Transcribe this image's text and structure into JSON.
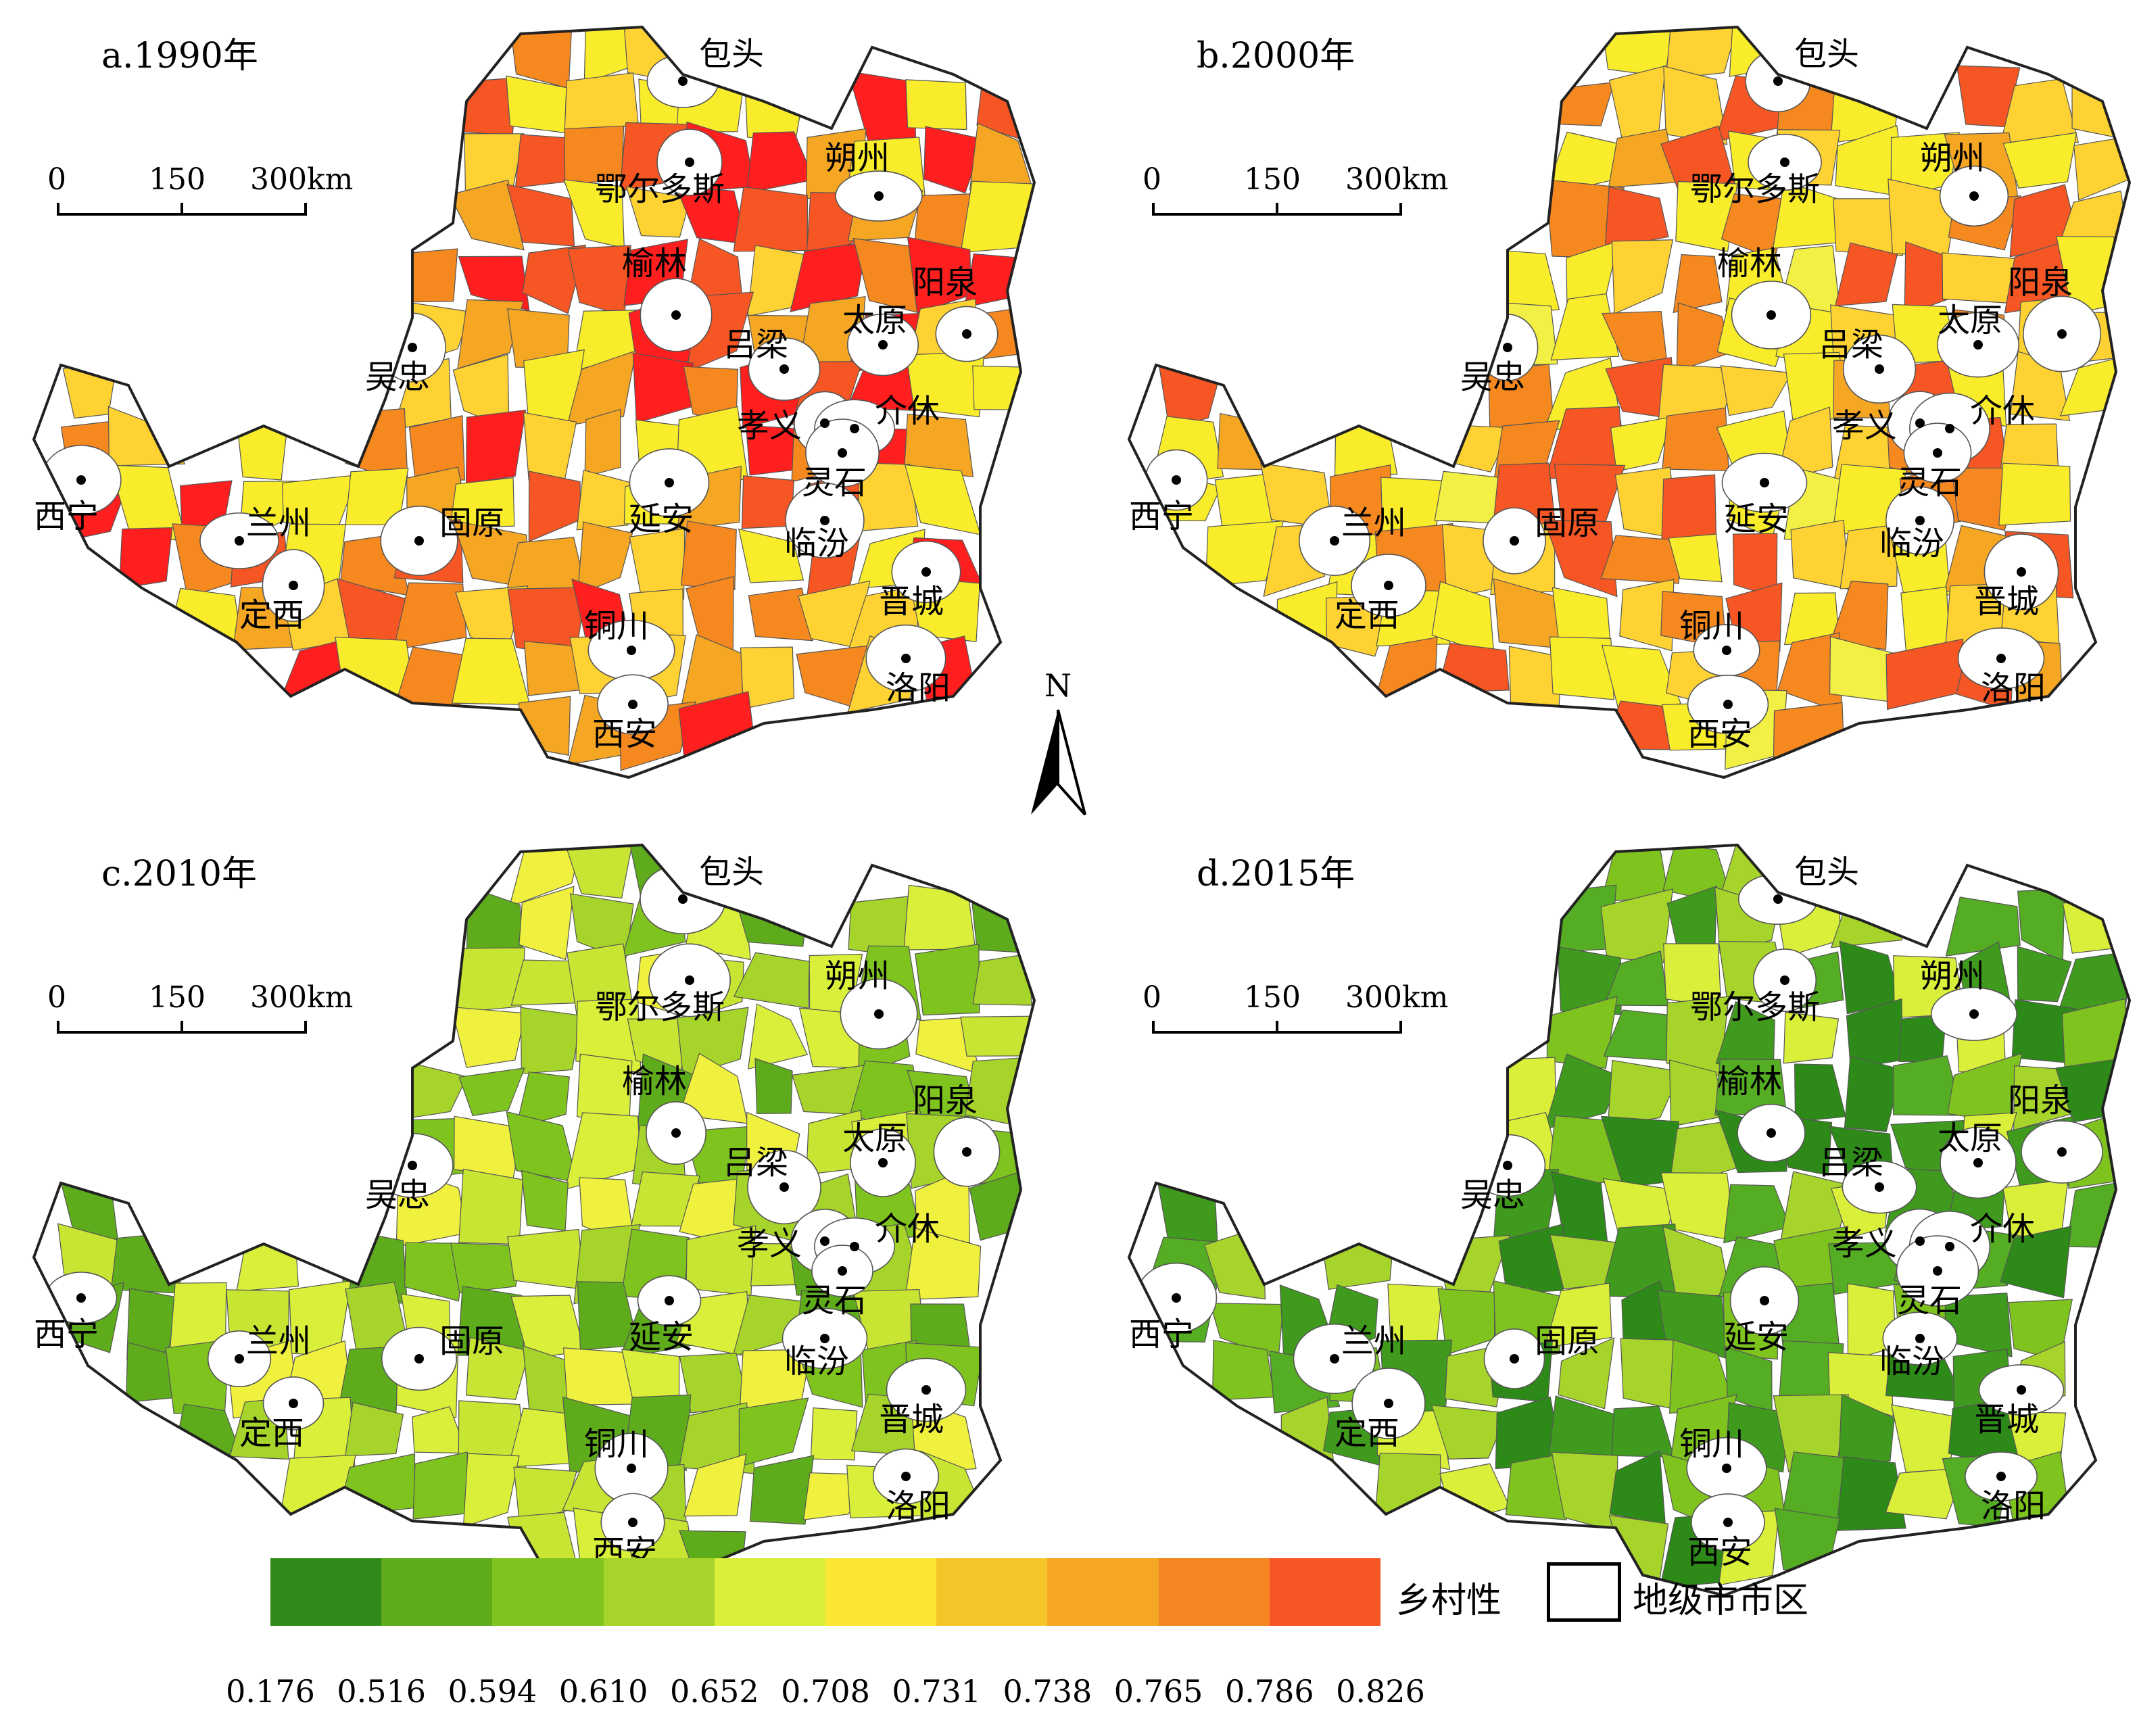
{
  "panels": [
    {
      "title": "a.1990年",
      "palette": [
        "#ff1f1f",
        "#f55624",
        "#f5881f",
        "#f5a623",
        "#ffd233",
        "#f9ec2a"
      ]
    },
    {
      "title": "b.2000年",
      "palette": [
        "#ffd233",
        "#f5a623",
        "#f9ec2a",
        "#f5881f",
        "#f2f044",
        "#f55624"
      ]
    },
    {
      "title": "c.2010年",
      "palette": [
        "#d9ef3a",
        "#c7e532",
        "#f0f03e",
        "#a6d42a",
        "#7fc31f",
        "#5eab1c"
      ]
    },
    {
      "title": "d.2015年",
      "palette": [
        "#3f9a1e",
        "#55ad23",
        "#7fc31f",
        "#a6d42a",
        "#d9ef3a",
        "#2e8a18"
      ]
    }
  ],
  "scalebar": {
    "labels": [
      "0",
      "150",
      "300km"
    ]
  },
  "cities": [
    {
      "name": "包头"
    },
    {
      "name": "鄂尔多斯"
    },
    {
      "name": "朔州"
    },
    {
      "name": "榆林"
    },
    {
      "name": "阳泉"
    },
    {
      "name": "吴忠"
    },
    {
      "name": "吕梁"
    },
    {
      "name": "太原"
    },
    {
      "name": "孝义"
    },
    {
      "name": "介休"
    },
    {
      "name": "灵石"
    },
    {
      "name": "西宁"
    },
    {
      "name": "延安"
    },
    {
      "name": "兰州"
    },
    {
      "name": "固原"
    },
    {
      "name": "临汾"
    },
    {
      "name": "晋城"
    },
    {
      "name": "定西"
    },
    {
      "name": "铜川"
    },
    {
      "name": "洛阳"
    },
    {
      "name": "西安"
    }
  ],
  "north_arrow": {
    "label": "N"
  },
  "legend": {
    "title": "乡村性",
    "urban_label": "地级市市区",
    "colors": [
      "#2f8a1a",
      "#5eab1c",
      "#7fc31f",
      "#a6d42a",
      "#d9ef3a",
      "#fbe733",
      "#f5c52a",
      "#f5a623",
      "#f58520",
      "#f55624",
      "#ff1f1f"
    ],
    "ticks": [
      "0.176",
      "0.516",
      "0.594",
      "0.610",
      "0.652",
      "0.708",
      "0.731",
      "0.738",
      "0.765",
      "0.786",
      "0.826"
    ]
  }
}
